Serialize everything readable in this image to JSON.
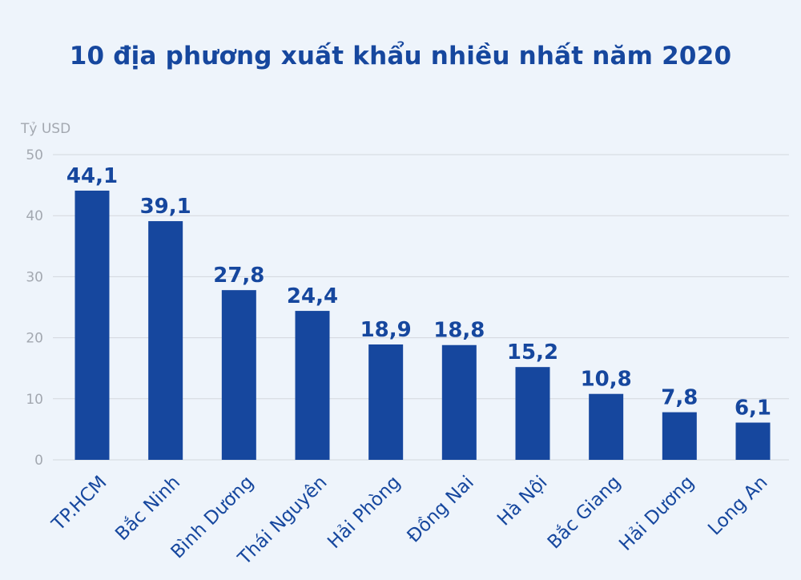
{
  "chart_data": {
    "type": "bar",
    "title": "10 địa phương xuất khẩu nhiều nhất năm 2020",
    "ylabel": "Tỷ USD",
    "xlabel": "",
    "ylim": [
      0,
      50
    ],
    "yticks": [
      "0",
      "10",
      "20",
      "30",
      "40",
      "50"
    ],
    "ytick_values": [
      0,
      10,
      20,
      30,
      40,
      50
    ],
    "grid": true,
    "categories": [
      "TP.HCM",
      "Bắc Ninh",
      "Bình Dương",
      "Thái Nguyên",
      "Hải Phòng",
      "Đồng Nai",
      "Hà Nội",
      "Bắc Giang",
      "Hải Dương",
      "Long An"
    ],
    "values": [
      44.1,
      39.1,
      27.8,
      24.4,
      18.9,
      18.8,
      15.2,
      10.8,
      7.8,
      6.1
    ],
    "value_labels": [
      "44,1",
      "39,1",
      "27,8",
      "24,4",
      "18,9",
      "18,8",
      "15,2",
      "10,8",
      "7,8",
      "6,1"
    ],
    "colors": {
      "bar": "#16479e",
      "text": "#16479e",
      "grid": "#d3d7dd",
      "tick": "#a3a8b0",
      "background": "#eef4fb"
    }
  }
}
